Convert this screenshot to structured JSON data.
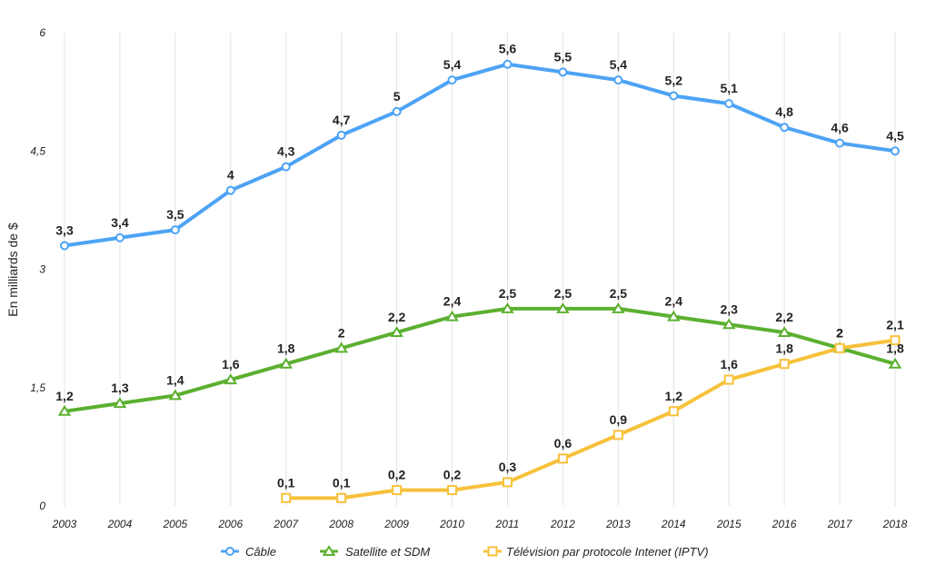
{
  "chart_data": {
    "type": "line",
    "ylabel": "En milliards de $",
    "ylim": [
      0,
      6
    ],
    "yticks": [
      "0",
      "1,5",
      "3",
      "4,5",
      "6"
    ],
    "ytick_values": [
      0,
      1.5,
      3,
      4.5,
      6
    ],
    "categories": [
      "2003",
      "2004",
      "2005",
      "2006",
      "2007",
      "2008",
      "2009",
      "2010",
      "2011",
      "2012",
      "2013",
      "2014",
      "2015",
      "2016",
      "2017",
      "2018"
    ],
    "grid": "vertical",
    "legend_position": "bottom",
    "series": [
      {
        "name": "Câble",
        "color": "#4da3f4",
        "marker": "circle",
        "values": [
          3.3,
          3.4,
          3.5,
          4.0,
          4.3,
          4.7,
          5.0,
          5.4,
          5.6,
          5.5,
          5.4,
          5.2,
          5.1,
          4.8,
          4.6,
          4.5
        ],
        "labels": [
          "3,3",
          "3,4",
          "3,5",
          "4",
          "4,3",
          "4,7",
          "5",
          "5,4",
          "5,6",
          "5,5",
          "5,4",
          "5,2",
          "5,1",
          "4,8",
          "4,6",
          "4,5"
        ]
      },
      {
        "name": "Satellite et SDM",
        "color": "#5cb030",
        "marker": "triangle",
        "values": [
          1.2,
          1.3,
          1.4,
          1.6,
          1.8,
          2.0,
          2.2,
          2.4,
          2.5,
          2.5,
          2.5,
          2.4,
          2.3,
          2.2,
          2.0,
          1.8
        ],
        "labels": [
          "1,2",
          "1,3",
          "1,4",
          "1,6",
          "1,8",
          "2",
          "2,2",
          "2,4",
          "2,5",
          "2,5",
          "2,5",
          "2,4",
          "2,3",
          "2,2",
          "2",
          "1,8"
        ]
      },
      {
        "name": "Télévision par protocole Intenet (IPTV)",
        "color": "#f7c13a",
        "marker": "square",
        "values": [
          null,
          null,
          null,
          null,
          0.1,
          0.1,
          0.2,
          0.2,
          0.3,
          0.6,
          0.9,
          1.2,
          1.6,
          1.8,
          2.0,
          2.1
        ],
        "labels": [
          "",
          "",
          "",
          "",
          "0,1",
          "0,1",
          "0,2",
          "0,2",
          "0,3",
          "0,6",
          "0,9",
          "1,2",
          "1,6",
          "1,8",
          "2",
          "2,1"
        ]
      }
    ]
  }
}
